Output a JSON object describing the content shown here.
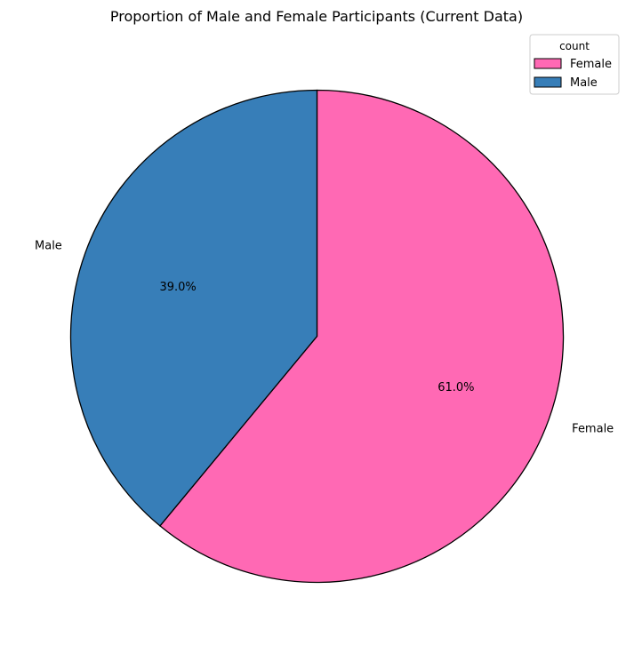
{
  "chart_data": {
    "type": "pie",
    "title": "Proportion of Male and Female Participants (Current Data)",
    "categories": [
      "Female",
      "Male"
    ],
    "values": [
      61.0,
      39.0
    ],
    "percent_labels": [
      "61.0%",
      "39.0%"
    ],
    "colors": [
      "#ff69b4",
      "#377eb8"
    ],
    "edge_color": "#000000",
    "start_angle_deg": 90,
    "direction": "clockwise",
    "legend": {
      "title": "count",
      "placement": "top-right",
      "entries": [
        "Female",
        "Male"
      ]
    }
  }
}
